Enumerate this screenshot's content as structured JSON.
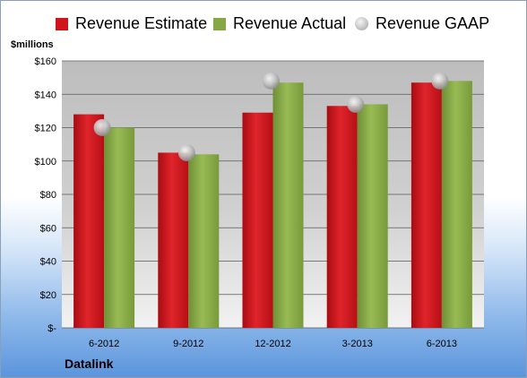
{
  "chart_data": {
    "type": "bar",
    "units_label": "$millions",
    "company": "Datalink",
    "categories": [
      "6-2012",
      "9-2012",
      "12-2012",
      "3-2013",
      "6-2013"
    ],
    "series": [
      {
        "name": "Revenue Estimate",
        "kind": "bar",
        "color": "#d0141c",
        "values": [
          128,
          105,
          129,
          133,
          147
        ]
      },
      {
        "name": "Revenue Actual",
        "kind": "bar",
        "color": "#86a844",
        "values": [
          120,
          104,
          147,
          134,
          148
        ]
      },
      {
        "name": "Revenue GAAP",
        "kind": "marker",
        "color": "#c0c0c0",
        "values": [
          120,
          105,
          148,
          134,
          148
        ]
      }
    ],
    "ylim": [
      0,
      160
    ],
    "yticks": [
      0,
      20,
      40,
      60,
      80,
      100,
      120,
      140,
      160
    ],
    "ytick_labels": [
      "$-",
      "$20",
      "$40",
      "$60",
      "$80",
      "$100",
      "$120",
      "$140",
      "$160"
    ],
    "grid": true,
    "legend_position": "top"
  }
}
